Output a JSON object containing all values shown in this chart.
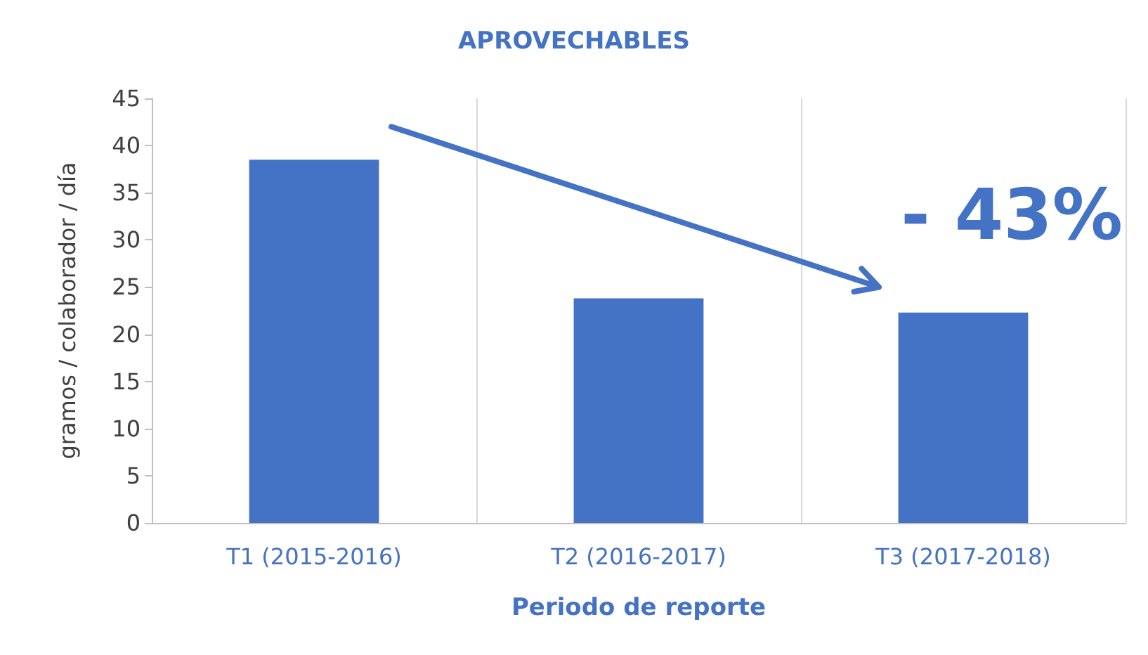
{
  "chart_data": {
    "type": "bar",
    "title": "APROVECHABLES",
    "xlabel": "Periodo de reporte",
    "ylabel": "gramos / colaborador / día",
    "categories": [
      "T1 (2015-2016)",
      "T2 (2016-2017)",
      "T3 (2017-2018)"
    ],
    "values": [
      38.5,
      23.8,
      22.3
    ],
    "color": "#4472c4",
    "ylim": [
      0,
      45
    ],
    "yticks": [
      0,
      5,
      10,
      15,
      20,
      25,
      30,
      35,
      40,
      45
    ],
    "grid": "x",
    "annotations": [
      "- 43%"
    ]
  }
}
